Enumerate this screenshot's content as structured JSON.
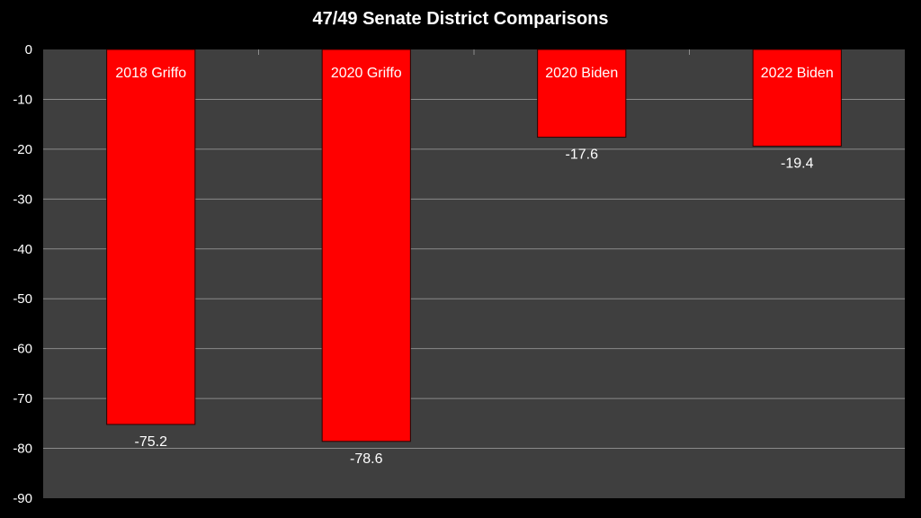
{
  "chart_data": {
    "type": "bar",
    "title": "47/49 Senate District Comparisons",
    "xlabel": "",
    "ylabel": "",
    "categories": [
      "2018 Griffo",
      "2020 Griffo",
      "2020 Biden",
      "2022 Biden"
    ],
    "values": [
      -75.2,
      -78.6,
      -17.6,
      -19.4
    ],
    "data_labels": [
      "-75.2",
      "-78.6",
      "-17.6",
      "-19.4"
    ],
    "ylim": [
      -90,
      0
    ],
    "yticks": [
      0,
      -10,
      -20,
      -30,
      -40,
      -50,
      -60,
      -70,
      -80,
      -90
    ],
    "ytick_labels": [
      "0",
      "-10",
      "-20",
      "-30",
      "-40",
      "-50",
      "-60",
      "-70",
      "-80",
      "-90"
    ],
    "category_label_position": "inside top of bar",
    "grid": true,
    "legend": "none",
    "colors": {
      "background": "#000000",
      "plot_area": "#3f3f3f",
      "bar": "#ff0000",
      "gridline": "#8a8a8a",
      "text": "#ffffff"
    }
  }
}
